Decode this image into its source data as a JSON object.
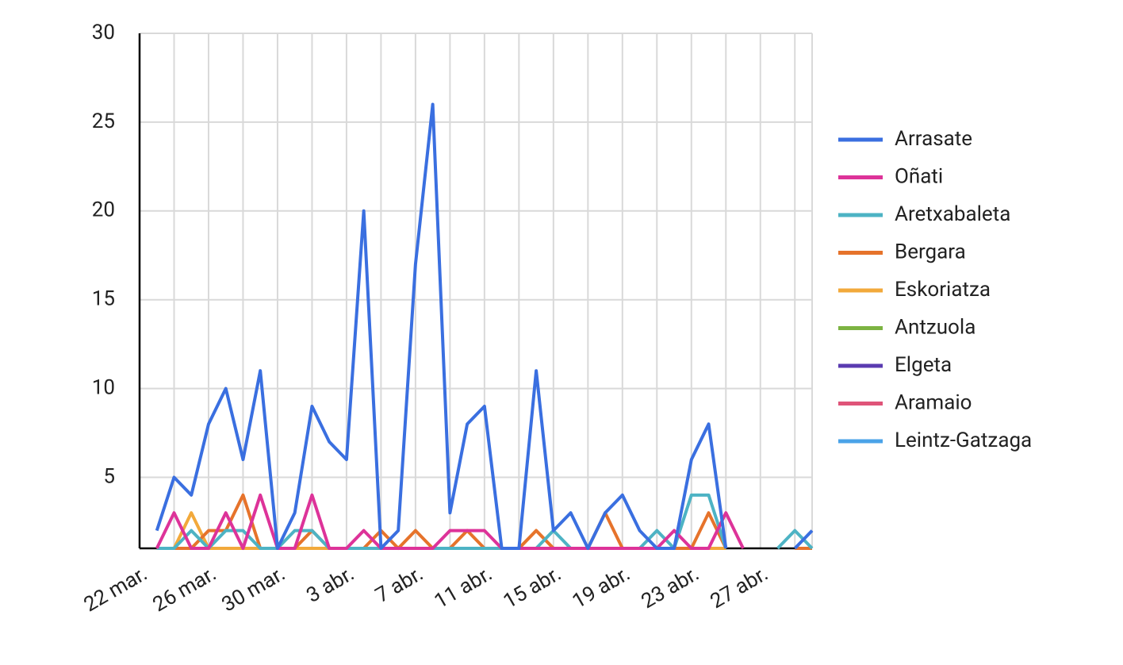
{
  "chart_data": {
    "type": "line",
    "categories": [
      "22 mar.",
      null,
      null,
      null,
      "26 mar.",
      null,
      null,
      null,
      "30 mar.",
      null,
      null,
      null,
      "3 abr.",
      null,
      null,
      null,
      "7 abr.",
      null,
      null,
      null,
      "11 abr.",
      null,
      null,
      null,
      "15 abr.",
      null,
      null,
      null,
      "19 abr.",
      null,
      null,
      null,
      "23 abr.",
      null,
      null,
      null,
      "27 abr.",
      null,
      null,
      null
    ],
    "ylim": [
      1,
      30
    ],
    "yticks": [
      5,
      10,
      15,
      20,
      25,
      30
    ],
    "grid": true,
    "series": [
      {
        "name": "Arrasate",
        "color": "#3a6fe0",
        "values": [
          null,
          2,
          5,
          4,
          8,
          10,
          6,
          11,
          1,
          3,
          9,
          7,
          6,
          20,
          1,
          2,
          17,
          26,
          3,
          8,
          9,
          1,
          1,
          11,
          2,
          3,
          1,
          3,
          4,
          2,
          1,
          1,
          6,
          8,
          1,
          null,
          null,
          null,
          1,
          2
        ]
      },
      {
        "name": "Oñati",
        "color": "#dd3399",
        "values": [
          null,
          1,
          3,
          1,
          1,
          3,
          1,
          4,
          1,
          1,
          4,
          1,
          1,
          2,
          1,
          1,
          1,
          1,
          2,
          2,
          2,
          1,
          1,
          1,
          1,
          1,
          1,
          1,
          1,
          1,
          1,
          2,
          1,
          1,
          3,
          1,
          null,
          null,
          null,
          null
        ]
      },
      {
        "name": "Aretxabaleta",
        "color": "#4db3c4",
        "values": [
          null,
          1,
          1,
          2,
          1,
          2,
          2,
          1,
          1,
          2,
          2,
          1,
          1,
          1,
          1,
          1,
          1,
          1,
          1,
          1,
          1,
          1,
          1,
          1,
          2,
          1,
          1,
          1,
          1,
          1,
          2,
          1,
          4,
          4,
          1,
          null,
          null,
          1,
          2,
          1
        ]
      },
      {
        "name": "Bergara",
        "color": "#e6732b",
        "values": [
          null,
          1,
          1,
          1,
          2,
          2,
          4,
          1,
          1,
          1,
          2,
          1,
          1,
          1,
          2,
          1,
          2,
          1,
          1,
          2,
          1,
          1,
          1,
          2,
          1,
          1,
          1,
          3,
          1,
          1,
          1,
          1,
          1,
          3,
          1,
          null,
          null,
          null,
          1,
          1
        ]
      },
      {
        "name": "Eskoriatza",
        "color": "#f2a93b",
        "values": [
          null,
          1,
          1,
          3,
          1,
          1,
          1,
          1,
          1,
          1,
          1,
          1,
          1,
          1,
          1,
          1,
          1,
          1,
          1,
          1,
          1,
          1,
          1,
          2,
          1,
          1,
          1,
          1,
          1,
          1,
          1,
          1,
          1,
          1,
          1,
          null,
          null,
          null,
          null,
          null
        ]
      },
      {
        "name": "Antzuola",
        "color": "#7cb342",
        "values": [
          null,
          1,
          1,
          1,
          1,
          1,
          1,
          1,
          1,
          1,
          1,
          1,
          1,
          1,
          1,
          1,
          1,
          1,
          1,
          1,
          1,
          1,
          1,
          1,
          1,
          1,
          1,
          1,
          1,
          1,
          1,
          1,
          1,
          1,
          1,
          null,
          null,
          null,
          null,
          null
        ]
      },
      {
        "name": "Elgeta",
        "color": "#5a3bb0",
        "values": [
          null,
          1,
          1,
          1,
          1,
          1,
          1,
          1,
          1,
          1,
          1,
          1,
          1,
          1,
          1,
          1,
          1,
          1,
          1,
          1,
          1,
          1,
          1,
          1,
          1,
          1,
          1,
          1,
          1,
          1,
          1,
          1,
          1,
          1,
          1,
          null,
          null,
          null,
          null,
          null
        ]
      },
      {
        "name": "Aramaio",
        "color": "#df5479",
        "values": [
          null,
          1,
          1,
          1,
          1,
          1,
          1,
          1,
          1,
          1,
          1,
          1,
          1,
          1,
          1,
          1,
          1,
          1,
          1,
          1,
          1,
          1,
          1,
          1,
          1,
          1,
          1,
          1,
          1,
          1,
          1,
          1,
          1,
          1,
          1,
          null,
          null,
          null,
          null,
          null
        ]
      },
      {
        "name": "Leintz-Gatzaga",
        "color": "#4aa3e8",
        "values": [
          null,
          1,
          1,
          1,
          1,
          1,
          1,
          1,
          1,
          1,
          1,
          1,
          1,
          1,
          1,
          1,
          1,
          1,
          1,
          1,
          1,
          1,
          1,
          1,
          1,
          1,
          1,
          1,
          1,
          1,
          1,
          1,
          1,
          1,
          1,
          null,
          null,
          null,
          null,
          null
        ]
      }
    ]
  }
}
